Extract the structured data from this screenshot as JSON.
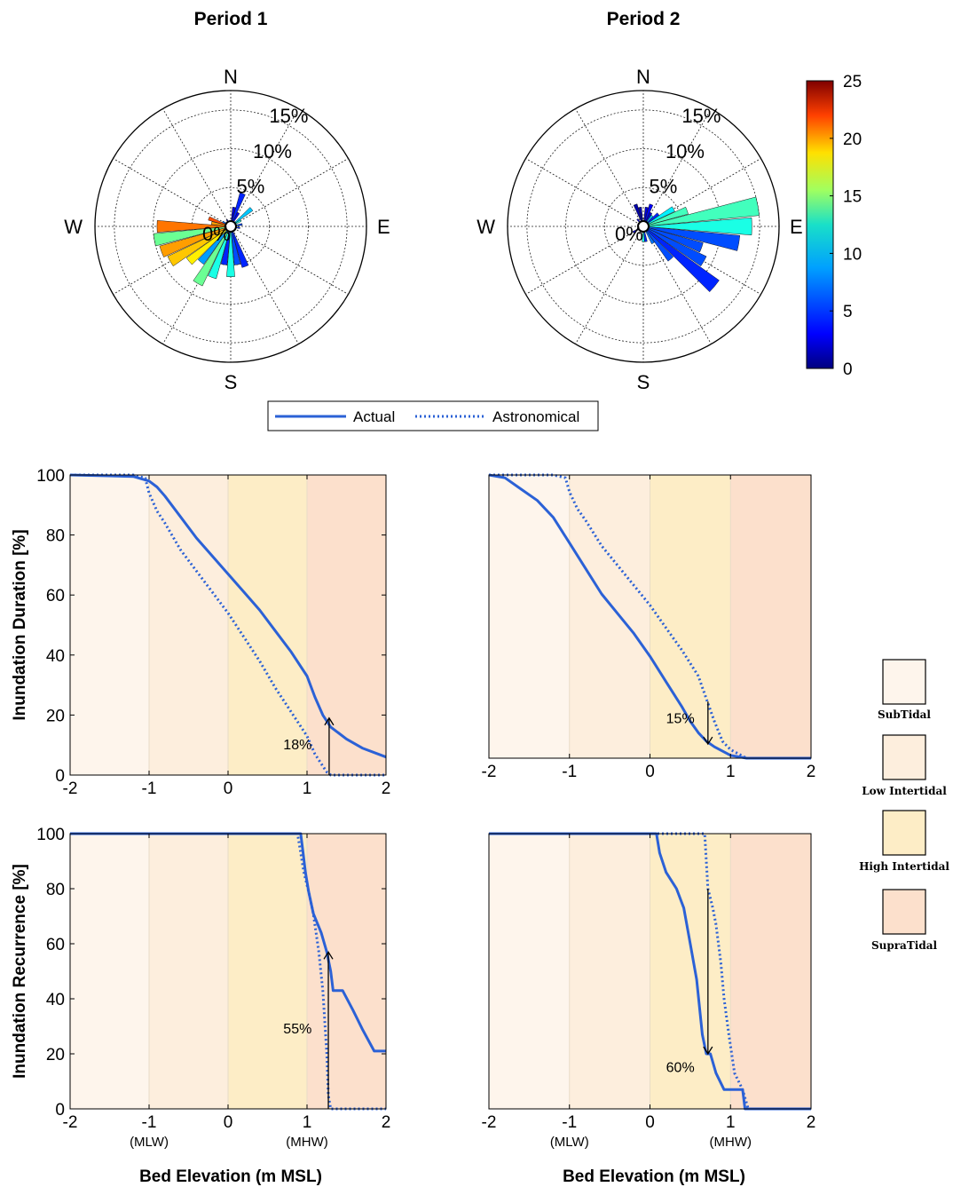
{
  "colors": {
    "subtidal": "#fef5ec",
    "low_intertidal": "#fdeedd",
    "high_intertidal": "#fdedc6",
    "supratidal": "#fce0cc",
    "actual_line": "#2b61d6",
    "astronomical_line": "#2b61d6"
  },
  "colorbar": {
    "ticks": [
      "0",
      "5",
      "10",
      "15",
      "20",
      "25"
    ],
    "range": [
      0,
      25
    ],
    "colormap": "jet"
  },
  "legend": {
    "actual": "Actual",
    "astronomical": "Astronomical"
  },
  "zone_legend": [
    {
      "label": "SubTidal",
      "color": "#fef5ec"
    },
    {
      "label": "Low Intertidal",
      "color": "#fdeedd"
    },
    {
      "label": "High Intertidal",
      "color": "#fdedc6"
    },
    {
      "label": "SupraTidal",
      "color": "#fce0cc"
    }
  ],
  "chart_data": [
    {
      "type": "rose",
      "title": "Period 1",
      "compass": [
        "N",
        "E",
        "S",
        "W"
      ],
      "ring_labels": [
        "0%",
        "5%",
        "10%",
        "15%"
      ],
      "rmax_percent": 17.5,
      "petals": [
        {
          "dir": 20,
          "freq": 4.5,
          "speed": 4
        },
        {
          "dir": 30,
          "freq": 2.0,
          "speed": 3
        },
        {
          "dir": 50,
          "freq": 3.5,
          "speed": 8
        },
        {
          "dir": 60,
          "freq": 1.5,
          "speed": 10
        },
        {
          "dir": 80,
          "freq": 1.5,
          "speed": 5
        },
        {
          "dir": 10,
          "freq": 2.5,
          "speed": 2
        },
        {
          "dir": 100,
          "freq": 1.2,
          "speed": 4
        },
        {
          "dir": 160,
          "freq": 5.5,
          "speed": 4
        },
        {
          "dir": 170,
          "freq": 5.0,
          "speed": 5
        },
        {
          "dir": 180,
          "freq": 6.5,
          "speed": 10
        },
        {
          "dir": 190,
          "freq": 5.0,
          "speed": 4
        },
        {
          "dir": 200,
          "freq": 7.0,
          "speed": 10
        },
        {
          "dir": 210,
          "freq": 8.5,
          "speed": 12
        },
        {
          "dir": 220,
          "freq": 6.0,
          "speed": 7
        },
        {
          "dir": 230,
          "freq": 7.0,
          "speed": 16
        },
        {
          "dir": 240,
          "freq": 9.0,
          "speed": 17
        },
        {
          "dir": 250,
          "freq": 9.5,
          "speed": 18
        },
        {
          "dir": 260,
          "freq": 10.0,
          "speed": 12
        },
        {
          "dir": 270,
          "freq": 9.5,
          "speed": 19
        },
        {
          "dir": 280,
          "freq": 2.5,
          "speed": 18
        },
        {
          "dir": 290,
          "freq": 3.0,
          "speed": 20
        },
        {
          "dir": 300,
          "freq": 1.2,
          "speed": 6
        },
        {
          "dir": 330,
          "freq": 1.0,
          "speed": 2
        }
      ]
    },
    {
      "type": "rose",
      "title": "Period 2",
      "compass": [
        "N",
        "E",
        "S",
        "W"
      ],
      "ring_labels": [
        "0%",
        "5%",
        "10%",
        "15%"
      ],
      "rmax_percent": 17.5,
      "petals": [
        {
          "dir": 10,
          "freq": 2.5,
          "speed": 2
        },
        {
          "dir": 20,
          "freq": 3.0,
          "speed": 3
        },
        {
          "dir": 30,
          "freq": 2.0,
          "speed": 2
        },
        {
          "dir": 40,
          "freq": 1.8,
          "speed": 8
        },
        {
          "dir": 50,
          "freq": 2.5,
          "speed": 4
        },
        {
          "dir": 60,
          "freq": 4.5,
          "speed": 9
        },
        {
          "dir": 70,
          "freq": 6.0,
          "speed": 11
        },
        {
          "dir": 80,
          "freq": 15.0,
          "speed": 11
        },
        {
          "dir": 90,
          "freq": 14.0,
          "speed": 10
        },
        {
          "dir": 100,
          "freq": 12.5,
          "speed": 5
        },
        {
          "dir": 110,
          "freq": 8.0,
          "speed": 5
        },
        {
          "dir": 120,
          "freq": 9.0,
          "speed": 5
        },
        {
          "dir": 130,
          "freq": 12.0,
          "speed": 4
        },
        {
          "dir": 140,
          "freq": 5.5,
          "speed": 5
        },
        {
          "dir": 150,
          "freq": 2.5,
          "speed": 6
        },
        {
          "dir": 170,
          "freq": 2.0,
          "speed": 4
        },
        {
          "dir": 180,
          "freq": 2.0,
          "speed": 10
        },
        {
          "dir": 240,
          "freq": 1.5,
          "speed": 2
        },
        {
          "dir": 320,
          "freq": 1.2,
          "speed": 2
        },
        {
          "dir": 340,
          "freq": 3.0,
          "speed": 1
        },
        {
          "dir": 350,
          "freq": 2.5,
          "speed": 1
        }
      ]
    },
    {
      "type": "line",
      "panel": "duration-period-1",
      "ylabel": "Inundation Duration [%]",
      "xlim": [
        -2,
        2
      ],
      "ylim": [
        0,
        100
      ],
      "xticks": [
        "-2",
        "-1",
        "0",
        "1",
        "2"
      ],
      "yticks": [
        "0",
        "20",
        "40",
        "60",
        "80",
        "100"
      ],
      "zones": [
        -2,
        -1,
        0,
        1,
        2
      ],
      "series": [
        {
          "name": "Actual",
          "style": "solid",
          "x": [
            -2,
            -1.2,
            -1.0,
            -0.9,
            -0.8,
            -0.6,
            -0.4,
            -0.2,
            0,
            0.2,
            0.4,
            0.6,
            0.8,
            1.0,
            1.1,
            1.2,
            1.3,
            1.5,
            1.7,
            1.9,
            2.0
          ],
          "y": [
            100,
            99.5,
            98,
            96,
            93,
            86,
            79,
            73,
            67,
            61,
            55,
            48,
            41,
            33,
            26,
            20,
            16,
            12,
            9,
            7,
            6
          ]
        },
        {
          "name": "Astronomical",
          "style": "dotted",
          "x": [
            -2,
            -1.2,
            -1.05,
            -1.0,
            -0.9,
            -0.8,
            -0.6,
            -0.4,
            -0.2,
            0,
            0.2,
            0.4,
            0.6,
            0.8,
            1.0,
            1.1,
            1.2,
            1.25,
            1.28,
            1.3,
            2.0
          ],
          "y": [
            100,
            100,
            99,
            94,
            88,
            84,
            75,
            68,
            61,
            54,
            46,
            38,
            29,
            21,
            13,
            7,
            3,
            1,
            0.5,
            0,
            0
          ]
        }
      ],
      "annotation": {
        "text": "18%",
        "x": 1.28,
        "y_from": 0,
        "y_to": 19,
        "label_x": 0.7,
        "label_y": 10
      }
    },
    {
      "type": "line",
      "panel": "duration-period-2",
      "xlim": [
        -2,
        2
      ],
      "ylim": [
        0,
        100
      ],
      "xticks": [
        "-2",
        "-1",
        "0",
        "1",
        "2"
      ],
      "yticks": [],
      "zones": [
        -2,
        -1,
        0,
        1,
        2
      ],
      "series": [
        {
          "name": "Actual",
          "style": "solid",
          "x": [
            -2,
            -1.8,
            -1.6,
            -1.4,
            -1.2,
            -1.0,
            -0.8,
            -0.6,
            -0.4,
            -0.2,
            0,
            0.2,
            0.4,
            0.5,
            0.6,
            0.7,
            0.8,
            1.0,
            1.2,
            2.0
          ],
          "y": [
            100,
            99,
            95,
            91,
            85,
            76,
            67,
            58,
            51,
            44,
            36,
            27,
            18,
            13,
            9,
            6,
            4,
            1,
            0,
            0
          ]
        },
        {
          "name": "Astronomical",
          "style": "dotted",
          "x": [
            -2,
            -1.2,
            -1.05,
            -1.0,
            -0.9,
            -0.8,
            -0.6,
            -0.4,
            -0.2,
            0,
            0.2,
            0.4,
            0.6,
            0.7,
            0.8,
            0.9,
            1.0,
            1.2,
            2.0
          ],
          "y": [
            100,
            100,
            99,
            94,
            88,
            84,
            75,
            68,
            61,
            54,
            46,
            38,
            29,
            21,
            13,
            6,
            3,
            0,
            0
          ]
        }
      ],
      "annotation": {
        "text": "15%",
        "x": 0.72,
        "y_from": 20,
        "y_to": 5,
        "label_x": 0.2,
        "label_y": 14
      }
    },
    {
      "type": "line",
      "panel": "recurrence-period-1",
      "ylabel": "Inundation Recurrence [%]",
      "xlim": [
        -2,
        2
      ],
      "ylim": [
        0,
        100
      ],
      "xticks": [
        "-2",
        "-1",
        "0",
        "1",
        "2"
      ],
      "xsublabels": {
        "-1": "(MLW)",
        "1": "(MHW)"
      },
      "yticks": [
        "0",
        "20",
        "40",
        "60",
        "80",
        "100"
      ],
      "zones": [
        -2,
        -1,
        0,
        1,
        2
      ],
      "series": [
        {
          "name": "Actual",
          "style": "solid",
          "x": [
            -2,
            0.92,
            0.95,
            0.98,
            1.02,
            1.08,
            1.18,
            1.25,
            1.3,
            1.33,
            1.45,
            1.58,
            1.7,
            1.85,
            2.0
          ],
          "y": [
            100,
            100,
            93,
            86,
            79,
            71,
            64,
            57,
            50,
            43,
            43,
            36,
            29,
            21,
            21
          ]
        },
        {
          "name": "Astronomical",
          "style": "dotted",
          "x": [
            -2,
            0.88,
            0.92,
            0.96,
            1.02,
            1.08,
            1.15,
            1.2,
            1.25,
            1.27,
            1.3,
            2.0
          ],
          "y": [
            100,
            100,
            93,
            86,
            79,
            71,
            57,
            43,
            20,
            5,
            0,
            0
          ]
        }
      ],
      "annotation": {
        "text": "55%",
        "x": 1.27,
        "y_from": 0,
        "y_to": 57,
        "label_x": 0.7,
        "label_y": 29
      }
    },
    {
      "type": "line",
      "panel": "recurrence-period-2",
      "xlim": [
        -2,
        2
      ],
      "ylim": [
        0,
        100
      ],
      "xticks": [
        "-2",
        "-1",
        "0",
        "1",
        "2"
      ],
      "xsublabels": {
        "-1": "(MLW)",
        "1": "(MHW)"
      },
      "yticks": [],
      "zones": [
        -2,
        -1,
        0,
        1,
        2
      ],
      "series": [
        {
          "name": "Actual",
          "style": "solid",
          "x": [
            -2,
            0.08,
            0.12,
            0.2,
            0.33,
            0.42,
            0.5,
            0.58,
            0.65,
            0.7,
            0.75,
            0.82,
            0.92,
            1.05,
            1.15,
            1.18,
            2.0
          ],
          "y": [
            100,
            100,
            93,
            86,
            80,
            73,
            60,
            47,
            27,
            20,
            20,
            13,
            7,
            7,
            7,
            0,
            0
          ]
        },
        {
          "name": "Astronomical",
          "style": "dotted",
          "x": [
            -2,
            0.68,
            0.72,
            0.78,
            0.82,
            0.88,
            0.92,
            0.98,
            1.05,
            1.15,
            1.22,
            2.0
          ],
          "y": [
            100,
            100,
            80,
            73,
            67,
            53,
            40,
            27,
            13,
            7,
            0,
            0
          ]
        }
      ],
      "annotation": {
        "text": "60%",
        "x": 0.72,
        "y_from": 80,
        "y_to": 20,
        "label_x": 0.2,
        "label_y": 15
      }
    }
  ],
  "shared_xlabel": "Bed Elevation (m MSL)"
}
